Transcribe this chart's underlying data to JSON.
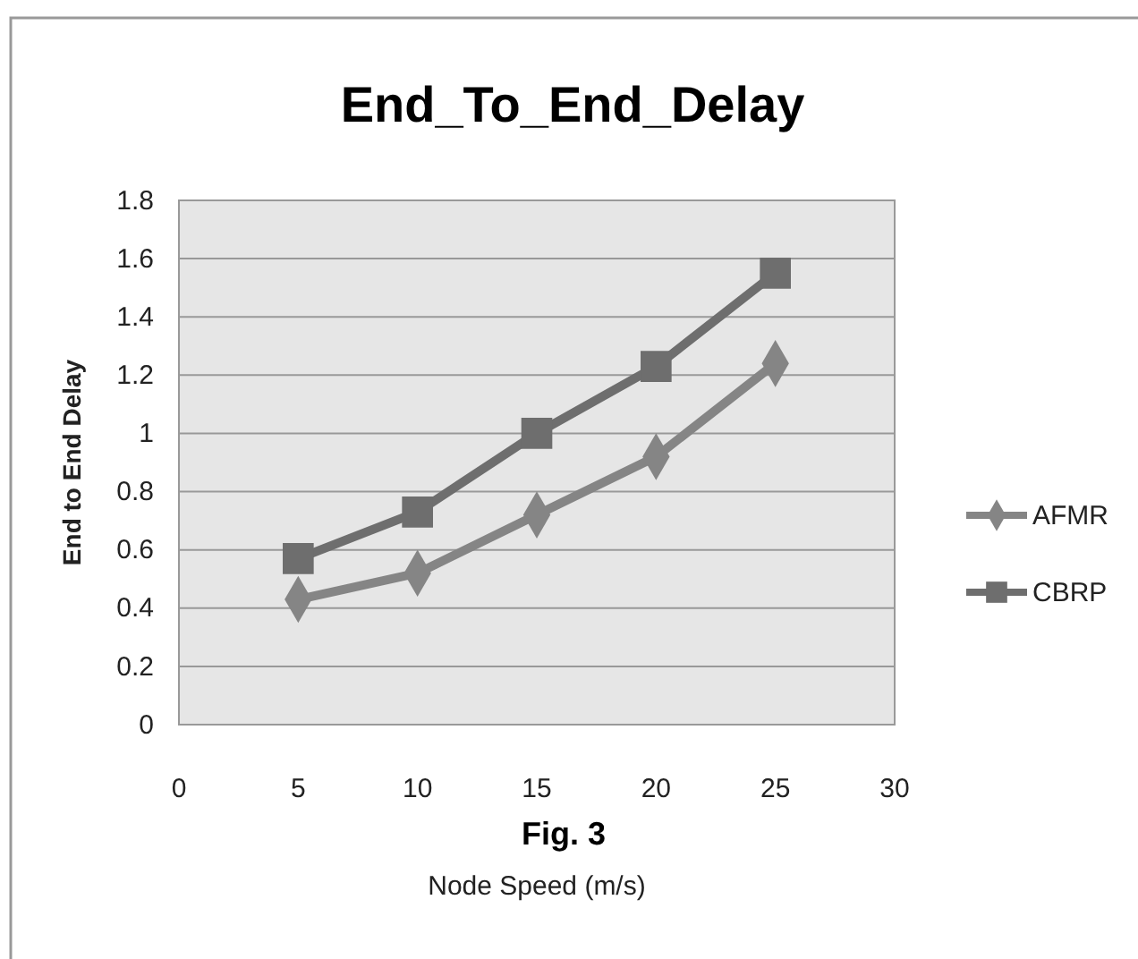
{
  "chart_data": {
    "type": "line",
    "title": "End_To_End_Delay",
    "xlabel": "Node Speed (m/s)",
    "ylabel": "End to End Delay",
    "annotations": [
      "Fig. 3"
    ],
    "x": [
      5,
      10,
      15,
      20,
      25
    ],
    "series": [
      {
        "name": "AFMR",
        "color": "#858585",
        "marker": "diamond",
        "values": [
          0.43,
          0.52,
          0.72,
          0.92,
          1.24
        ]
      },
      {
        "name": "CBRP",
        "color": "#6e6e6e",
        "marker": "square",
        "values": [
          0.57,
          0.73,
          1.0,
          1.23,
          1.55
        ]
      }
    ],
    "xlim": [
      0,
      30
    ],
    "xticks": [
      0,
      5,
      10,
      15,
      20,
      25,
      30
    ],
    "ylim": [
      0,
      1.8
    ],
    "yticks": [
      0,
      0.2,
      0.4,
      0.6,
      0.8,
      1,
      1.2,
      1.4,
      1.6,
      1.8
    ],
    "grid": "y",
    "legend": "right"
  }
}
